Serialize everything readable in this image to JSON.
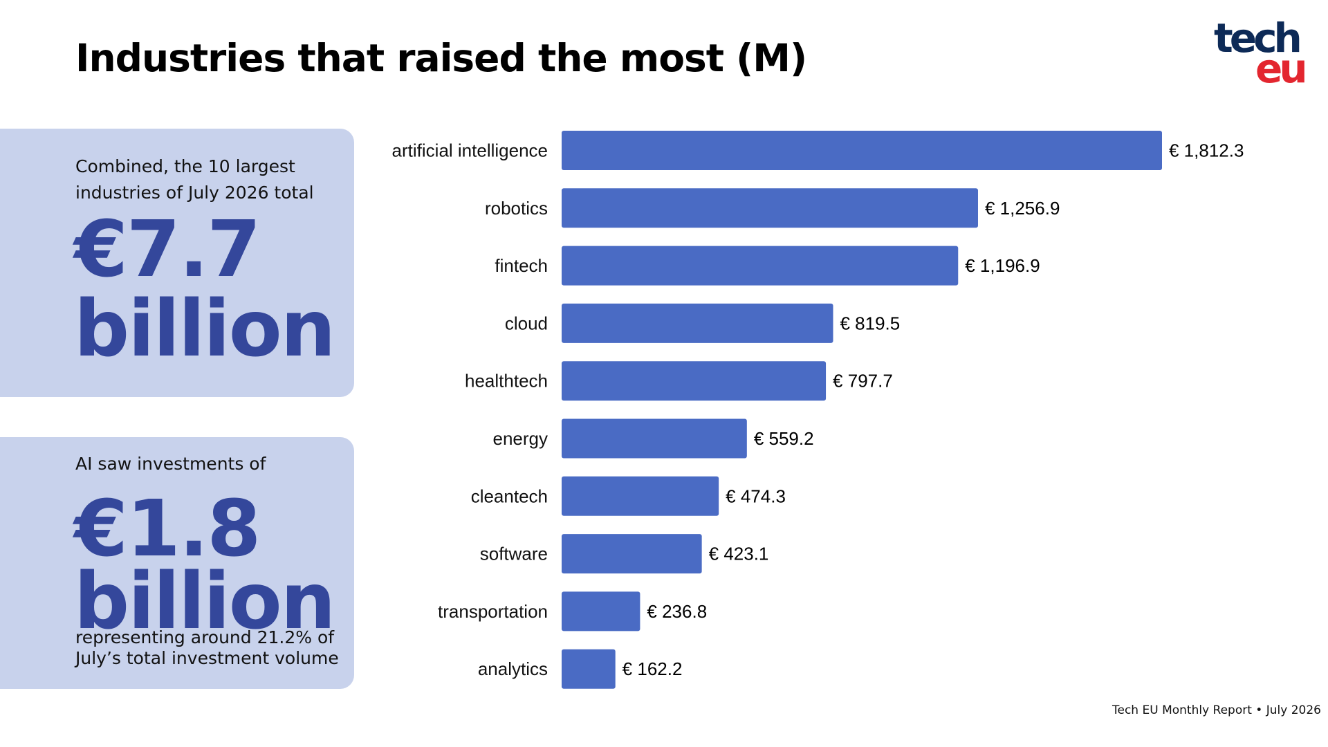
{
  "title": "Industries that raised the most (M)",
  "logo": {
    "line1": "tech",
    "line2": "eu",
    "colors": {
      "tech": "#0d2a57",
      "eu": "#e3262f"
    }
  },
  "card1": {
    "text": "Combined, the 10 largest industries of July 2026 total",
    "big_line1": "€7.7",
    "big_line2": "billion"
  },
  "card2": {
    "text_top": "AI saw investments of",
    "big_line1": "€1.8",
    "big_line2": "billion",
    "text_bottom": "representing around 21.2% of July’s total investment volume"
  },
  "footer": "Tech EU Monthly Report • July 2026",
  "colors": {
    "bar": "#4a6bc4",
    "card_bg": "#c8d2ec",
    "big_number": "#34479b"
  },
  "chart_data": {
    "type": "bar",
    "orientation": "horizontal",
    "categories": [
      "artificial intelligence",
      "robotics",
      "fintech",
      "cloud",
      "healthtech",
      "energy",
      "cleantech",
      "software",
      "transportation",
      "analytics"
    ],
    "values": [
      1812.3,
      1256.9,
      1196.9,
      819.5,
      797.7,
      559.2,
      474.3,
      423.1,
      236.8,
      162.2
    ],
    "value_labels": [
      "€ 1,812.3",
      "€ 1,256.9",
      "€ 1,196.9",
      "€ 819.5",
      "€ 797.7",
      "€ 559.2",
      "€ 474.3",
      "€ 423.1",
      "€ 236.8",
      "€ 162.2"
    ],
    "grid": false,
    "axes_visible": false
  }
}
